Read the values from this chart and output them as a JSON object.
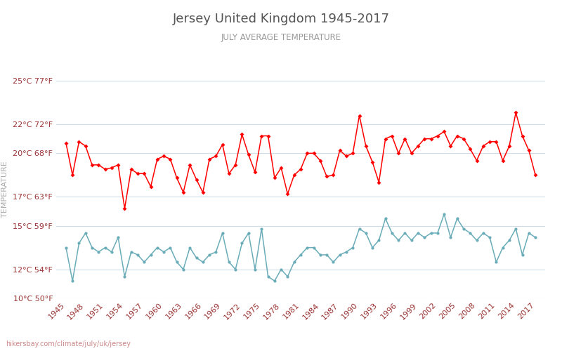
{
  "title": "Jersey United Kingdom 1945-2017",
  "subtitle": "JULY AVERAGE TEMPERATURE",
  "ylabel": "TEMPERATURE",
  "watermark": "hikersbay.com/climate/july/uk/jersey",
  "years": [
    1945,
    1946,
    1947,
    1948,
    1949,
    1950,
    1951,
    1952,
    1953,
    1954,
    1955,
    1956,
    1957,
    1958,
    1959,
    1960,
    1961,
    1962,
    1963,
    1964,
    1965,
    1966,
    1967,
    1968,
    1969,
    1970,
    1971,
    1972,
    1973,
    1974,
    1975,
    1976,
    1977,
    1978,
    1979,
    1980,
    1981,
    1982,
    1983,
    1984,
    1985,
    1986,
    1987,
    1988,
    1989,
    1990,
    1991,
    1992,
    1993,
    1994,
    1995,
    1996,
    1997,
    1998,
    1999,
    2000,
    2001,
    2002,
    2003,
    2004,
    2005,
    2006,
    2007,
    2008,
    2009,
    2010,
    2011,
    2012,
    2013,
    2014,
    2015,
    2016,
    2017
  ],
  "day_temps": [
    20.7,
    18.5,
    20.8,
    20.5,
    19.2,
    19.2,
    18.9,
    19.0,
    19.2,
    16.2,
    18.9,
    18.6,
    18.6,
    17.7,
    19.6,
    19.8,
    19.6,
    18.3,
    17.3,
    19.2,
    18.2,
    17.3,
    19.6,
    19.8,
    20.6,
    18.6,
    19.2,
    21.3,
    19.9,
    18.7,
    21.2,
    21.2,
    18.3,
    19.0,
    17.2,
    18.5,
    18.9,
    20.0,
    20.0,
    19.5,
    18.4,
    18.5,
    20.2,
    19.8,
    20.0,
    22.6,
    20.5,
    19.4,
    18.0,
    21.0,
    21.2,
    20.0,
    21.0,
    20.0,
    20.5,
    21.0,
    21.0,
    21.2,
    21.5,
    20.5,
    21.2,
    21.0,
    20.3,
    19.5,
    20.5,
    20.8,
    20.8,
    19.5,
    20.5,
    22.8,
    21.2,
    20.2,
    18.5
  ],
  "night_temps": [
    13.5,
    11.2,
    13.8,
    14.5,
    13.5,
    13.2,
    13.5,
    13.2,
    14.2,
    11.5,
    13.2,
    13.0,
    12.5,
    13.0,
    13.5,
    13.2,
    13.5,
    12.5,
    12.0,
    13.5,
    12.8,
    12.5,
    13.0,
    13.2,
    14.5,
    12.5,
    12.0,
    13.8,
    14.5,
    12.0,
    14.8,
    11.5,
    11.2,
    12.0,
    11.5,
    12.5,
    13.0,
    13.5,
    13.5,
    13.0,
    13.0,
    12.5,
    13.0,
    13.2,
    13.5,
    14.8,
    14.5,
    13.5,
    14.0,
    15.5,
    14.5,
    14.0,
    14.5,
    14.0,
    14.5,
    14.2,
    14.5,
    14.5,
    15.8,
    14.2,
    15.5,
    14.8,
    14.5,
    14.0,
    14.5,
    14.2,
    12.5,
    13.5,
    14.0,
    14.8,
    13.0,
    14.5,
    14.2
  ],
  "ylim_min": 10,
  "ylim_max": 25,
  "yticks_c": [
    10,
    12,
    15,
    17,
    20,
    22,
    25
  ],
  "yticks_f": [
    50,
    54,
    59,
    63,
    68,
    72,
    77
  ],
  "day_color": "#ff0000",
  "night_color": "#6aacb8",
  "bg_color": "#ffffff",
  "grid_color": "#d0dce8",
  "title_color": "#555555",
  "subtitle_color": "#999999",
  "ylabel_color": "#aaaaaa",
  "tick_label_color": "#993333",
  "watermark_color": "#cc8888"
}
